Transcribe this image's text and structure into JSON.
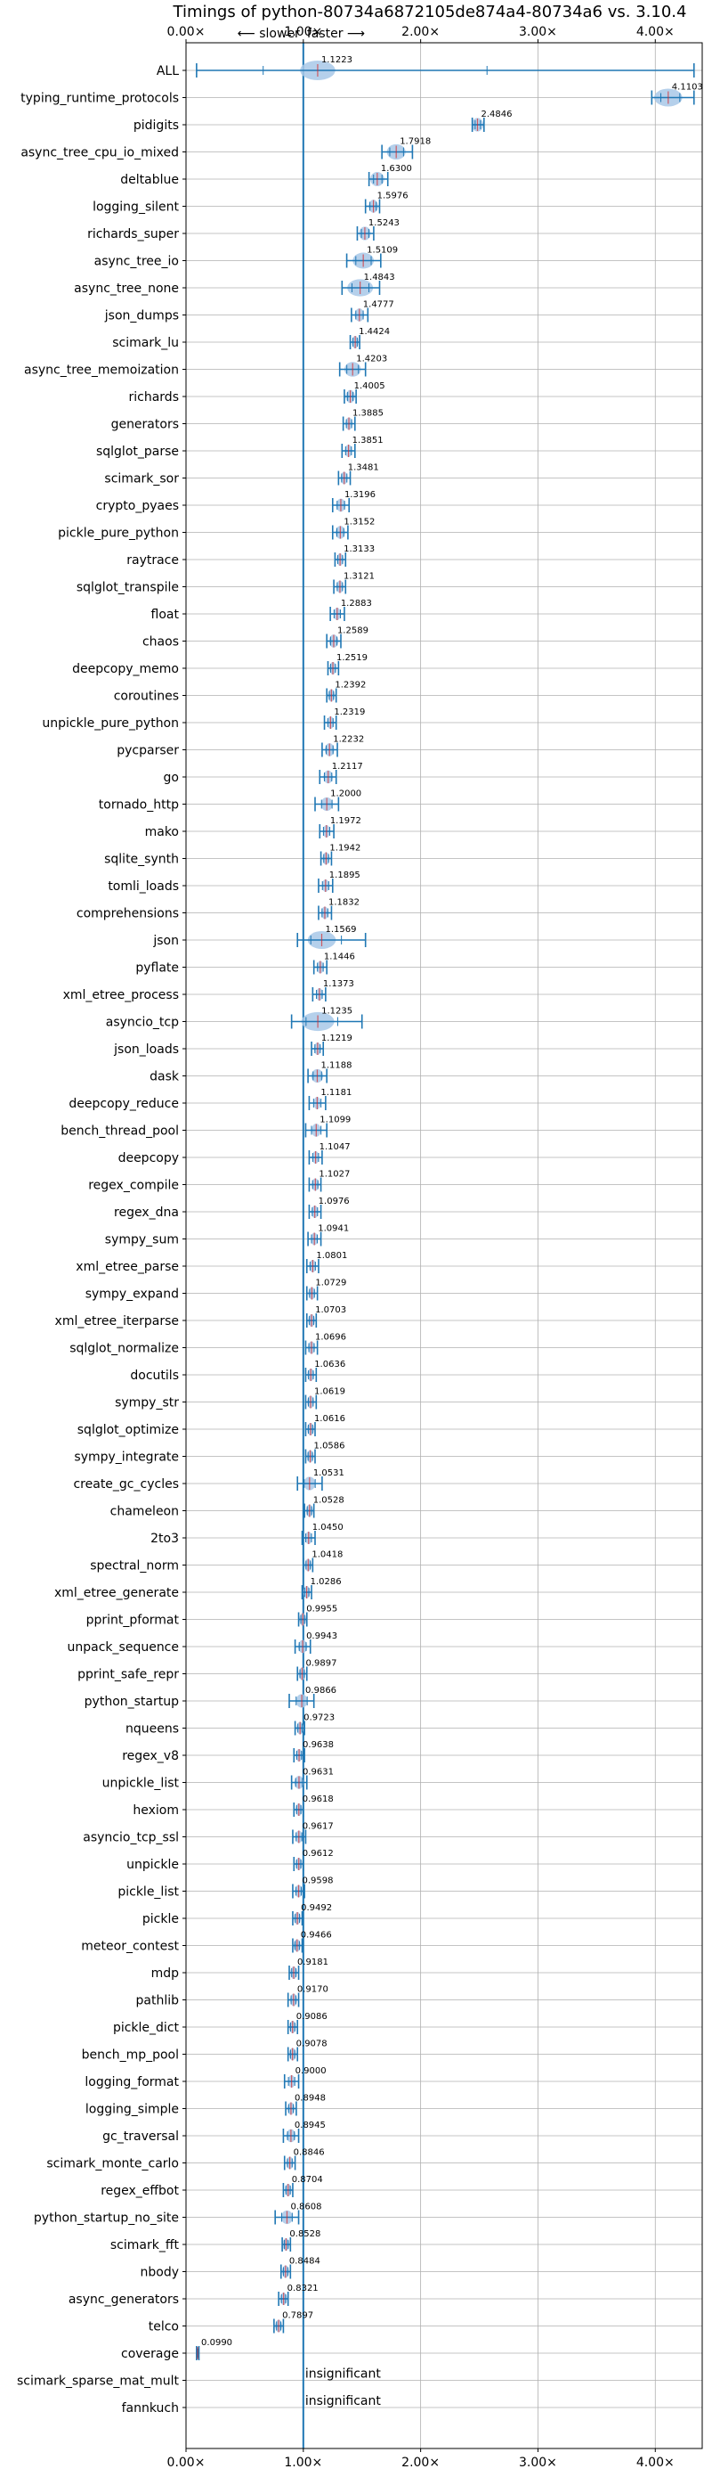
{
  "chart_data": {
    "type": "scatter",
    "title": "Timings of python-80734a6872105de874a4-80734a6 vs. 3.10.4",
    "slower_label": "⟵ slower",
    "faster_label": "faster ⟶",
    "xlim": [
      0,
      4.4
    ],
    "xticks": [
      0,
      1,
      2,
      3,
      4
    ],
    "xtick_labels": [
      "0.00×",
      "1.00×",
      "2.00×",
      "3.00×",
      "4.00×"
    ],
    "reference_x": 1.0,
    "grid": true,
    "insignificant_label": "insignificant",
    "benchmarks": [
      {
        "name": "ALL",
        "value": 1.1223,
        "label": "1.1223",
        "lo": 0.09,
        "hi": 4.33,
        "violin": 0.15
      },
      {
        "name": "typing_runtime_protocols",
        "value": 4.1103,
        "label": "4.1103",
        "lo": 3.97,
        "hi": 4.33,
        "violin": 0.12
      },
      {
        "name": "pidigits",
        "value": 2.4846,
        "label": "2.4846",
        "lo": 2.44,
        "hi": 2.54,
        "violin": 0.05
      },
      {
        "name": "async_tree_cpu_io_mixed",
        "value": 1.7918,
        "label": "1.7918",
        "lo": 1.67,
        "hi": 1.93,
        "violin": 0.08
      },
      {
        "name": "deltablue",
        "value": 1.63,
        "label": "1.6300",
        "lo": 1.56,
        "hi": 1.72,
        "violin": 0.06
      },
      {
        "name": "logging_silent",
        "value": 1.5976,
        "label": "1.5976",
        "lo": 1.53,
        "hi": 1.65,
        "violin": 0.04
      },
      {
        "name": "richards_super",
        "value": 1.5243,
        "label": "1.5243",
        "lo": 1.46,
        "hi": 1.6,
        "violin": 0.05
      },
      {
        "name": "async_tree_io",
        "value": 1.5109,
        "label": "1.5109",
        "lo": 1.37,
        "hi": 1.66,
        "violin": 0.09
      },
      {
        "name": "async_tree_none",
        "value": 1.4843,
        "label": "1.4843",
        "lo": 1.33,
        "hi": 1.65,
        "violin": 0.11
      },
      {
        "name": "json_dumps",
        "value": 1.4777,
        "label": "1.4777",
        "lo": 1.41,
        "hi": 1.55,
        "violin": 0.04
      },
      {
        "name": "scimark_lu",
        "value": 1.4424,
        "label": "1.4424",
        "lo": 1.4,
        "hi": 1.48,
        "violin": 0.03
      },
      {
        "name": "async_tree_memoization",
        "value": 1.4203,
        "label": "1.4203",
        "lo": 1.31,
        "hi": 1.53,
        "violin": 0.07
      },
      {
        "name": "richards",
        "value": 1.4005,
        "label": "1.4005",
        "lo": 1.35,
        "hi": 1.45,
        "violin": 0.04
      },
      {
        "name": "generators",
        "value": 1.3885,
        "label": "1.3885",
        "lo": 1.34,
        "hi": 1.44,
        "violin": 0.03
      },
      {
        "name": "sqlglot_parse",
        "value": 1.3851,
        "label": "1.3851",
        "lo": 1.33,
        "hi": 1.44,
        "violin": 0.03
      },
      {
        "name": "scimark_sor",
        "value": 1.3481,
        "label": "1.3481",
        "lo": 1.3,
        "hi": 1.4,
        "violin": 0.03
      },
      {
        "name": "crypto_pyaes",
        "value": 1.3196,
        "label": "1.3196",
        "lo": 1.25,
        "hi": 1.39,
        "violin": 0.04
      },
      {
        "name": "pickle_pure_python",
        "value": 1.3152,
        "label": "1.3152",
        "lo": 1.25,
        "hi": 1.38,
        "violin": 0.04
      },
      {
        "name": "raytrace",
        "value": 1.3133,
        "label": "1.3133",
        "lo": 1.27,
        "hi": 1.36,
        "violin": 0.03
      },
      {
        "name": "sqlglot_transpile",
        "value": 1.3121,
        "label": "1.3121",
        "lo": 1.26,
        "hi": 1.36,
        "violin": 0.03
      },
      {
        "name": "float",
        "value": 1.2883,
        "label": "1.2883",
        "lo": 1.23,
        "hi": 1.35,
        "violin": 0.03
      },
      {
        "name": "chaos",
        "value": 1.2589,
        "label": "1.2589",
        "lo": 1.2,
        "hi": 1.32,
        "violin": 0.04
      },
      {
        "name": "deepcopy_memo",
        "value": 1.2519,
        "label": "1.2519",
        "lo": 1.21,
        "hi": 1.3,
        "violin": 0.03
      },
      {
        "name": "coroutines",
        "value": 1.2392,
        "label": "1.2392",
        "lo": 1.2,
        "hi": 1.28,
        "violin": 0.03
      },
      {
        "name": "unpickle_pure_python",
        "value": 1.2319,
        "label": "1.2319",
        "lo": 1.18,
        "hi": 1.28,
        "violin": 0.03
      },
      {
        "name": "pycparser",
        "value": 1.2232,
        "label": "1.2232",
        "lo": 1.16,
        "hi": 1.29,
        "violin": 0.04
      },
      {
        "name": "go",
        "value": 1.2117,
        "label": "1.2117",
        "lo": 1.14,
        "hi": 1.28,
        "violin": 0.04
      },
      {
        "name": "tornado_http",
        "value": 1.2,
        "label": "1.2000",
        "lo": 1.1,
        "hi": 1.3,
        "violin": 0.05
      },
      {
        "name": "mako",
        "value": 1.1972,
        "label": "1.1972",
        "lo": 1.14,
        "hi": 1.26,
        "violin": 0.03
      },
      {
        "name": "sqlite_synth",
        "value": 1.1942,
        "label": "1.1942",
        "lo": 1.15,
        "hi": 1.24,
        "violin": 0.03
      },
      {
        "name": "tomli_loads",
        "value": 1.1895,
        "label": "1.1895",
        "lo": 1.13,
        "hi": 1.25,
        "violin": 0.03
      },
      {
        "name": "comprehensions",
        "value": 1.1832,
        "label": "1.1832",
        "lo": 1.13,
        "hi": 1.24,
        "violin": 0.03
      },
      {
        "name": "json",
        "value": 1.1569,
        "label": "1.1569",
        "lo": 0.95,
        "hi": 1.53,
        "violin": 0.12
      },
      {
        "name": "pyflate",
        "value": 1.1446,
        "label": "1.1446",
        "lo": 1.09,
        "hi": 1.2,
        "violin": 0.03
      },
      {
        "name": "xml_etree_process",
        "value": 1.1373,
        "label": "1.1373",
        "lo": 1.08,
        "hi": 1.19,
        "violin": 0.03
      },
      {
        "name": "asyncio_tcp",
        "value": 1.1235,
        "label": "1.1235",
        "lo": 0.9,
        "hi": 1.5,
        "violin": 0.14
      },
      {
        "name": "json_loads",
        "value": 1.1219,
        "label": "1.1219",
        "lo": 1.07,
        "hi": 1.17,
        "violin": 0.03
      },
      {
        "name": "dask",
        "value": 1.1188,
        "label": "1.1188",
        "lo": 1.04,
        "hi": 1.2,
        "violin": 0.05
      },
      {
        "name": "deepcopy_reduce",
        "value": 1.1181,
        "label": "1.1181",
        "lo": 1.05,
        "hi": 1.19,
        "violin": 0.03
      },
      {
        "name": "bench_thread_pool",
        "value": 1.1099,
        "label": "1.1099",
        "lo": 1.02,
        "hi": 1.2,
        "violin": 0.04
      },
      {
        "name": "deepcopy",
        "value": 1.1047,
        "label": "1.1047",
        "lo": 1.05,
        "hi": 1.16,
        "violin": 0.03
      },
      {
        "name": "regex_compile",
        "value": 1.1027,
        "label": "1.1027",
        "lo": 1.05,
        "hi": 1.15,
        "violin": 0.03
      },
      {
        "name": "regex_dna",
        "value": 1.0976,
        "label": "1.0976",
        "lo": 1.05,
        "hi": 1.15,
        "violin": 0.03
      },
      {
        "name": "sympy_sum",
        "value": 1.0941,
        "label": "1.0941",
        "lo": 1.04,
        "hi": 1.15,
        "violin": 0.03
      },
      {
        "name": "xml_etree_parse",
        "value": 1.0801,
        "label": "1.0801",
        "lo": 1.03,
        "hi": 1.13,
        "violin": 0.03
      },
      {
        "name": "sympy_expand",
        "value": 1.0729,
        "label": "1.0729",
        "lo": 1.03,
        "hi": 1.12,
        "violin": 0.03
      },
      {
        "name": "xml_etree_iterparse",
        "value": 1.0703,
        "label": "1.0703",
        "lo": 1.03,
        "hi": 1.11,
        "violin": 0.03
      },
      {
        "name": "sqlglot_normalize",
        "value": 1.0696,
        "label": "1.0696",
        "lo": 1.02,
        "hi": 1.12,
        "violin": 0.03
      },
      {
        "name": "docutils",
        "value": 1.0636,
        "label": "1.0636",
        "lo": 1.02,
        "hi": 1.11,
        "violin": 0.03
      },
      {
        "name": "sympy_str",
        "value": 1.0619,
        "label": "1.0619",
        "lo": 1.02,
        "hi": 1.11,
        "violin": 0.03
      },
      {
        "name": "sqlglot_optimize",
        "value": 1.0616,
        "label": "1.0616",
        "lo": 1.02,
        "hi": 1.1,
        "violin": 0.03
      },
      {
        "name": "sympy_integrate",
        "value": 1.0586,
        "label": "1.0586",
        "lo": 1.02,
        "hi": 1.1,
        "violin": 0.03
      },
      {
        "name": "create_gc_cycles",
        "value": 1.0531,
        "label": "1.0531",
        "lo": 0.95,
        "hi": 1.16,
        "violin": 0.05
      },
      {
        "name": "chameleon",
        "value": 1.0528,
        "label": "1.0528",
        "lo": 1.01,
        "hi": 1.09,
        "violin": 0.03
      },
      {
        "name": "2to3",
        "value": 1.045,
        "label": "1.0450",
        "lo": 0.99,
        "hi": 1.1,
        "violin": 0.03
      },
      {
        "name": "spectral_norm",
        "value": 1.0418,
        "label": "1.0418",
        "lo": 1.0,
        "hi": 1.08,
        "violin": 0.03
      },
      {
        "name": "xml_etree_generate",
        "value": 1.0286,
        "label": "1.0286",
        "lo": 0.99,
        "hi": 1.07,
        "violin": 0.03
      },
      {
        "name": "pprint_pformat",
        "value": 0.9955,
        "label": "0.9955",
        "lo": 0.96,
        "hi": 1.03,
        "violin": 0.03
      },
      {
        "name": "unpack_sequence",
        "value": 0.9943,
        "label": "0.9943",
        "lo": 0.93,
        "hi": 1.06,
        "violin": 0.04
      },
      {
        "name": "pprint_safe_repr",
        "value": 0.9897,
        "label": "0.9897",
        "lo": 0.95,
        "hi": 1.03,
        "violin": 0.03
      },
      {
        "name": "python_startup",
        "value": 0.9866,
        "label": "0.9866",
        "lo": 0.88,
        "hi": 1.09,
        "violin": 0.05
      },
      {
        "name": "nqueens",
        "value": 0.9723,
        "label": "0.9723",
        "lo": 0.93,
        "hi": 1.01,
        "violin": 0.03
      },
      {
        "name": "regex_v8",
        "value": 0.9638,
        "label": "0.9638",
        "lo": 0.92,
        "hi": 1.01,
        "violin": 0.03
      },
      {
        "name": "unpickle_list",
        "value": 0.9631,
        "label": "0.9631",
        "lo": 0.9,
        "hi": 1.03,
        "violin": 0.04
      },
      {
        "name": "hexiom",
        "value": 0.9618,
        "label": "0.9618",
        "lo": 0.92,
        "hi": 1.0,
        "violin": 0.03
      },
      {
        "name": "asyncio_tcp_ssl",
        "value": 0.9617,
        "label": "0.9617",
        "lo": 0.91,
        "hi": 1.02,
        "violin": 0.03
      },
      {
        "name": "unpickle",
        "value": 0.9612,
        "label": "0.9612",
        "lo": 0.92,
        "hi": 1.0,
        "violin": 0.03
      },
      {
        "name": "pickle_list",
        "value": 0.9598,
        "label": "0.9598",
        "lo": 0.91,
        "hi": 1.01,
        "violin": 0.03
      },
      {
        "name": "pickle",
        "value": 0.9492,
        "label": "0.9492",
        "lo": 0.91,
        "hi": 0.99,
        "violin": 0.03
      },
      {
        "name": "meteor_contest",
        "value": 0.9466,
        "label": "0.9466",
        "lo": 0.91,
        "hi": 0.99,
        "violin": 0.03
      },
      {
        "name": "mdp",
        "value": 0.9181,
        "label": "0.9181",
        "lo": 0.88,
        "hi": 0.96,
        "violin": 0.03
      },
      {
        "name": "pathlib",
        "value": 0.917,
        "label": "0.9170",
        "lo": 0.87,
        "hi": 0.96,
        "violin": 0.03
      },
      {
        "name": "pickle_dict",
        "value": 0.9086,
        "label": "0.9086",
        "lo": 0.87,
        "hi": 0.95,
        "violin": 0.03
      },
      {
        "name": "bench_mp_pool",
        "value": 0.9078,
        "label": "0.9078",
        "lo": 0.87,
        "hi": 0.95,
        "violin": 0.03
      },
      {
        "name": "logging_format",
        "value": 0.9,
        "label": "0.9000",
        "lo": 0.84,
        "hi": 0.96,
        "violin": 0.03
      },
      {
        "name": "logging_simple",
        "value": 0.8948,
        "label": "0.8948",
        "lo": 0.85,
        "hi": 0.94,
        "violin": 0.03
      },
      {
        "name": "gc_traversal",
        "value": 0.8945,
        "label": "0.8945",
        "lo": 0.83,
        "hi": 0.96,
        "violin": 0.04
      },
      {
        "name": "scimark_monte_carlo",
        "value": 0.8846,
        "label": "0.8846",
        "lo": 0.84,
        "hi": 0.93,
        "violin": 0.03
      },
      {
        "name": "regex_effbot",
        "value": 0.8704,
        "label": "0.8704",
        "lo": 0.83,
        "hi": 0.91,
        "violin": 0.03
      },
      {
        "name": "python_startup_no_site",
        "value": 0.8608,
        "label": "0.8608",
        "lo": 0.76,
        "hi": 0.96,
        "violin": 0.05
      },
      {
        "name": "scimark_fft",
        "value": 0.8528,
        "label": "0.8528",
        "lo": 0.82,
        "hi": 0.89,
        "violin": 0.03
      },
      {
        "name": "nbody",
        "value": 0.8484,
        "label": "0.8484",
        "lo": 0.81,
        "hi": 0.89,
        "violin": 0.03
      },
      {
        "name": "async_generators",
        "value": 0.8321,
        "label": "0.8321",
        "lo": 0.79,
        "hi": 0.87,
        "violin": 0.03
      },
      {
        "name": "telco",
        "value": 0.7897,
        "label": "0.7897",
        "lo": 0.75,
        "hi": 0.83,
        "violin": 0.03
      },
      {
        "name": "coverage",
        "value": 0.099,
        "label": "0.0990",
        "lo": 0.09,
        "hi": 0.11,
        "violin": 0.01
      },
      {
        "name": "scimark_sparse_mat_mult",
        "value": null,
        "label": null,
        "insignificant": true
      },
      {
        "name": "fannkuch",
        "value": null,
        "label": null,
        "insignificant": true
      }
    ]
  }
}
